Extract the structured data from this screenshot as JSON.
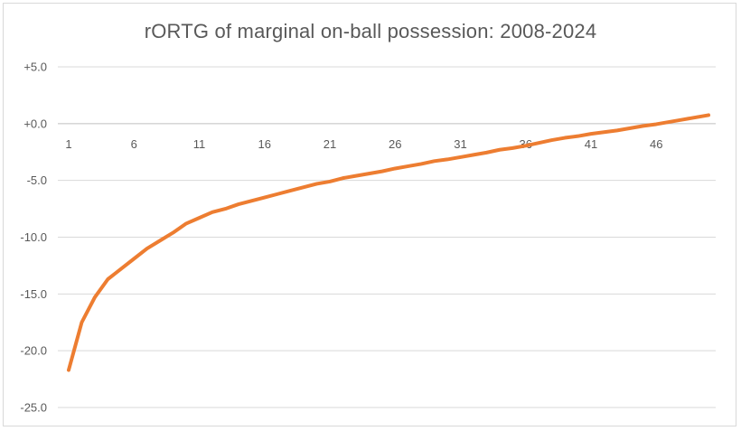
{
  "chart_data": {
    "type": "line",
    "title": "rORTG of marginal on-ball possession:  2008-2024",
    "xlabel": "",
    "ylabel": "",
    "ylim": [
      -25,
      5
    ],
    "y_ticks": [
      5,
      0,
      -5,
      -10,
      -15,
      -20,
      -25
    ],
    "y_tick_labels": [
      "+5.0",
      "+0.0",
      "-5.0",
      "-10.0",
      "-15.0",
      "-20.0",
      "-25.0"
    ],
    "x_tick_labels": [
      "1",
      "6",
      "11",
      "16",
      "21",
      "26",
      "31",
      "36",
      "41",
      "46"
    ],
    "x_tick_values": [
      1,
      6,
      11,
      16,
      21,
      26,
      31,
      36,
      41,
      46
    ],
    "grid": true,
    "legend": "none",
    "line_color": "#ED7D31",
    "series": [
      {
        "x": [
          1,
          2,
          3,
          4,
          5,
          6,
          7,
          8,
          9,
          10,
          11,
          12,
          13,
          14,
          15,
          16,
          17,
          18,
          19,
          20,
          21,
          22,
          23,
          24,
          25,
          26,
          27,
          28,
          29,
          30,
          31,
          32,
          33,
          34,
          35,
          36,
          37,
          38,
          39,
          40,
          41,
          42,
          43,
          44,
          45,
          46,
          47,
          48,
          49,
          50
        ],
        "values": [
          -21.7,
          -17.5,
          -15.3,
          -13.7,
          -12.8,
          -11.9,
          -11.0,
          -10.3,
          -9.6,
          -8.8,
          -8.3,
          -7.8,
          -7.5,
          -7.1,
          -6.8,
          -6.5,
          -6.2,
          -5.9,
          -5.6,
          -5.3,
          -5.1,
          -4.8,
          -4.6,
          -4.4,
          -4.2,
          -3.95,
          -3.75,
          -3.55,
          -3.3,
          -3.15,
          -2.95,
          -2.75,
          -2.55,
          -2.3,
          -2.15,
          -1.95,
          -1.7,
          -1.45,
          -1.25,
          -1.1,
          -0.9,
          -0.75,
          -0.6,
          -0.4,
          -0.2,
          -0.05,
          0.15,
          0.35,
          0.55,
          0.75
        ]
      }
    ]
  }
}
